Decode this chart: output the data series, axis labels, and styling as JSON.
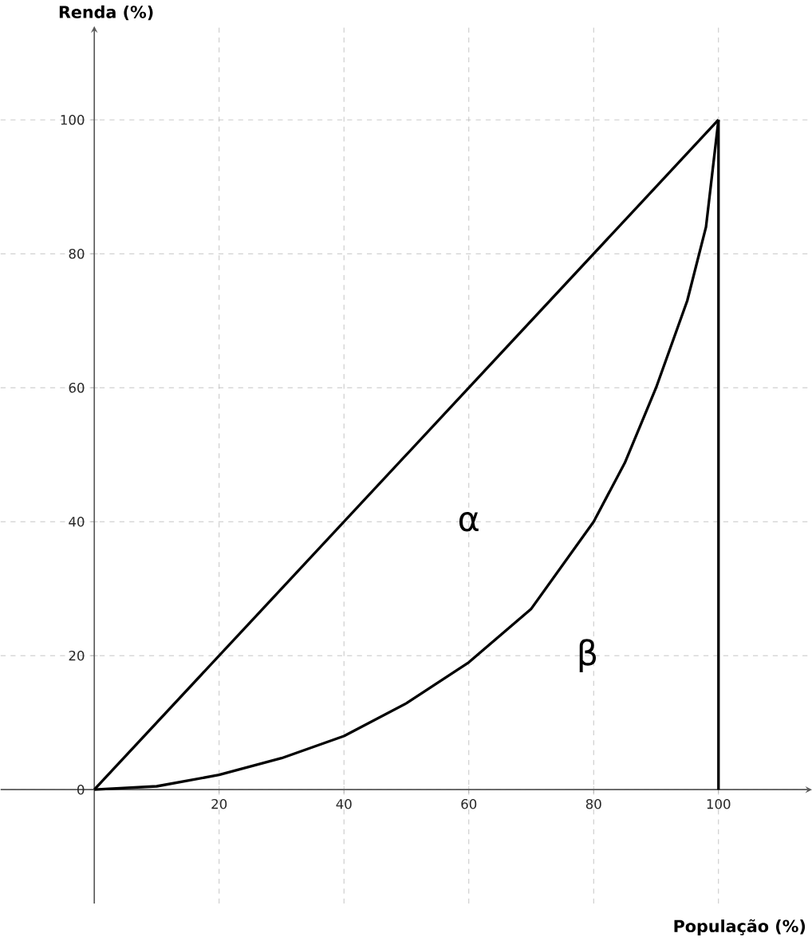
{
  "chart_data": {
    "type": "line",
    "xlabel": "População (%)",
    "ylabel": "Renda (%)",
    "xlim": [
      -15,
      115
    ],
    "ylim": [
      -17,
      114
    ],
    "xticks": [
      20,
      40,
      60,
      80,
      100
    ],
    "yticks": [
      0,
      20,
      40,
      60,
      80,
      100
    ],
    "grid": true,
    "marker": "none",
    "line_style": "solid",
    "series": [
      {
        "color": "#000000",
        "x": [
          0,
          100
        ],
        "values": [
          0,
          100
        ]
      },
      {
        "color": "#000000",
        "x": [
          0,
          10,
          20,
          30,
          40,
          50,
          60,
          70,
          80,
          85,
          90,
          95,
          98,
          100
        ],
        "values": [
          0,
          0.5,
          2.2,
          4.7,
          8,
          12.9,
          19,
          27,
          40,
          48.8,
          60,
          73,
          84,
          100
        ]
      },
      {
        "color": "#000000",
        "x": [
          100,
          100
        ],
        "values": [
          0,
          100
        ]
      }
    ],
    "annotations": [
      "α",
      "β"
    ]
  }
}
